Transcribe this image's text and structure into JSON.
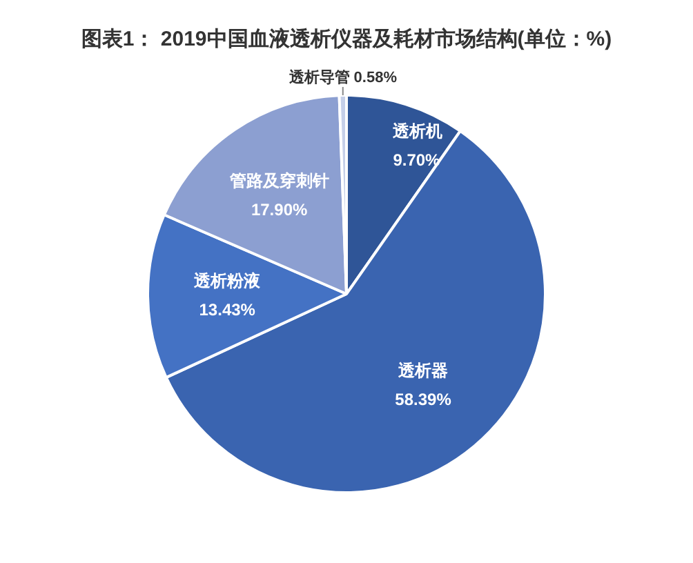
{
  "chart_data": {
    "type": "pie",
    "title": "图表1： 2019中国血液透析仪器及耗材市场结构(单位：%)",
    "categories": [
      "透析机",
      "透析器",
      "透析粉液",
      "管路及穿刺针",
      "透析导管"
    ],
    "values": [
      9.7,
      58.39,
      13.43,
      17.9,
      0.58
    ],
    "value_labels": [
      "9.70%",
      "58.39%",
      "13.43%",
      "17.90%",
      "0.58%"
    ],
    "colors": [
      "#2f5597",
      "#3a64b0",
      "#4472c4",
      "#8c9fd1",
      "#c5cfe8"
    ],
    "legend": false
  }
}
